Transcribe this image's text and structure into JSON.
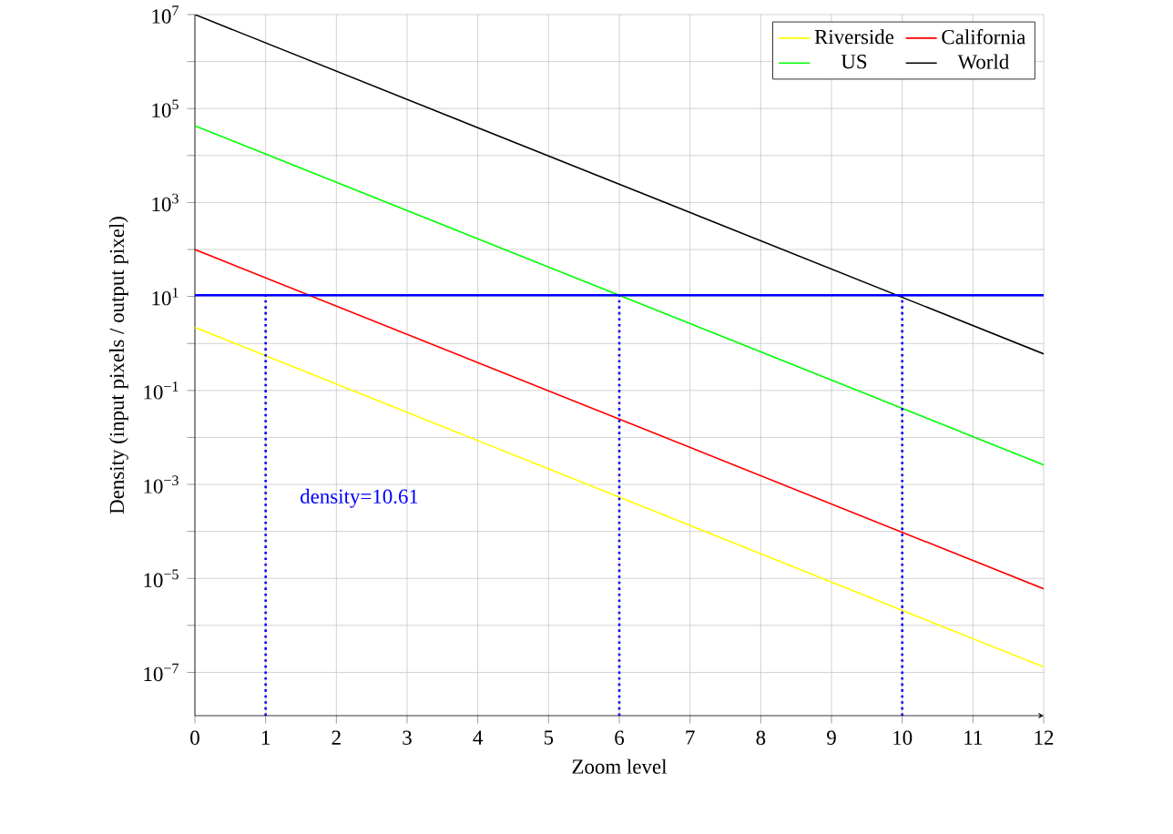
{
  "chart_data": {
    "type": "line",
    "xlabel": "Zoom level",
    "ylabel": "Density (input pixels / output pixel)",
    "x": [
      0,
      12
    ],
    "series": [
      {
        "name": "Riverside",
        "color": "#ffff00",
        "values": [
          2.2,
          1.3e-07
        ]
      },
      {
        "name": "California",
        "color": "#ff0000",
        "values": [
          100,
          6e-06
        ]
      },
      {
        "name": "US",
        "color": "#00ff00",
        "values": [
          43000,
          0.0026
        ]
      },
      {
        "name": "World",
        "color": "#000000",
        "values": [
          10000000.0,
          0.6
        ]
      }
    ],
    "log": "y",
    "xlim": [
      0,
      12
    ],
    "ylim": [
      1.2e-08,
      10000000.0
    ],
    "xticks": [
      0,
      1,
      2,
      3,
      4,
      5,
      6,
      7,
      8,
      9,
      10,
      11,
      12
    ],
    "yticks": [
      {
        "value": 1e-07,
        "label": "10$^{−7}$"
      },
      {
        "value": 1e-06,
        "label": null
      },
      {
        "value": 1e-05,
        "label": "10$^{−5}$"
      },
      {
        "value": 0.0001,
        "label": null
      },
      {
        "value": 0.001,
        "label": "10$^{−3}$"
      },
      {
        "value": 0.01,
        "label": null
      },
      {
        "value": 0.1,
        "label": "10$^{−1}$"
      },
      {
        "value": 1,
        "label": null
      },
      {
        "value": 10,
        "label": "10$^{1}$"
      },
      {
        "value": 100,
        "label": null
      },
      {
        "value": 1000,
        "label": "10$^{3}$"
      },
      {
        "value": 10000,
        "label": null
      },
      {
        "value": 100000,
        "label": "10$^{5}$"
      },
      {
        "value": 1000000,
        "label": null
      },
      {
        "value": 10000000,
        "label": "10$^{7}$"
      }
    ],
    "ref_lines": [
      {
        "axis": "y",
        "value": 10.61,
        "label": "density=10.61",
        "color": "#0000ff",
        "line_style": "solid"
      },
      {
        "axis": "x",
        "value": 1,
        "color": "#0000ff",
        "line_style": "dotted"
      },
      {
        "axis": "x",
        "value": 6,
        "color": "#0000ff",
        "line_style": "dotted"
      },
      {
        "axis": "x",
        "value": 10,
        "color": "#0000ff",
        "line_style": "dotted"
      }
    ],
    "grid": true,
    "legend": "top right",
    "marker": "none",
    "line_style": "solid"
  }
}
